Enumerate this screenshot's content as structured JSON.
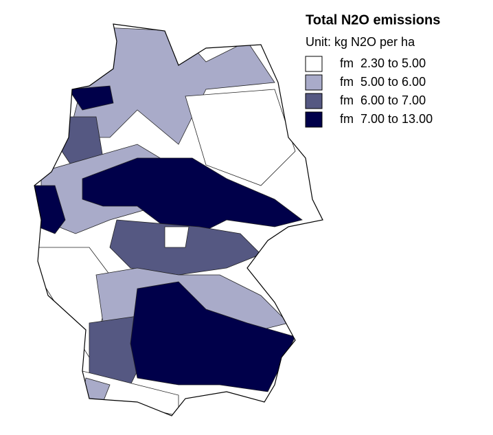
{
  "legend": {
    "title": "Total N2O emissions",
    "unit": "Unit: kg N2O per ha",
    "items": [
      {
        "label": "fm  2.30 to 5.00",
        "color": "#ffffff"
      },
      {
        "label": "fm  5.00 to 6.00",
        "color": "#a9abc9"
      },
      {
        "label": "fm  6.00 to 7.00",
        "color": "#555882"
      },
      {
        "label": "fm  7.00 to 13.00",
        "color": "#00004a"
      }
    ]
  }
}
